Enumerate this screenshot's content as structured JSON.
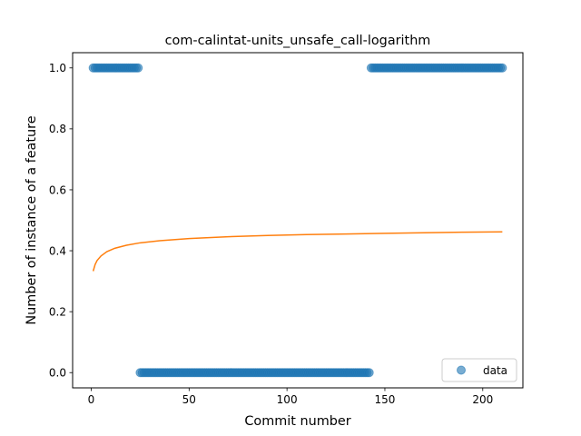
{
  "chart_data": {
    "type": "scatter",
    "title": "com-calintat-units_unsafe_call-logarithm",
    "xlabel": "Commit number",
    "ylabel": "Number of instance of a feature",
    "xlim": [
      -9.5,
      220.5
    ],
    "ylim": [
      -0.05,
      1.05
    ],
    "xticks": [
      0,
      50,
      100,
      150,
      200
    ],
    "xtick_labels": [
      "0",
      "50",
      "100",
      "150",
      "200"
    ],
    "yticks": [
      0.0,
      0.2,
      0.4,
      0.6,
      0.8,
      1.0
    ],
    "ytick_labels": [
      "0.0",
      "0.2",
      "0.4",
      "0.6",
      "0.8",
      "1.0"
    ],
    "legend": {
      "placement": "lower-right",
      "entries": [
        "data"
      ]
    },
    "series": [
      {
        "name": "data",
        "kind": "scatter",
        "color": "#1f77b4",
        "segments": [
          {
            "x_start": 1,
            "x_end": 24,
            "y": 1.0
          },
          {
            "x_start": 25,
            "x_end": 142,
            "y": 0.0
          },
          {
            "x_start": 143,
            "x_end": 210,
            "y": 1.0
          }
        ]
      },
      {
        "kind": "line",
        "color": "#ff7f0e",
        "x": [
          1,
          2,
          3,
          5,
          8,
          12,
          18,
          25,
          35,
          50,
          70,
          90,
          110,
          130,
          150,
          170,
          190,
          210
        ],
        "y": [
          0.333,
          0.355,
          0.368,
          0.383,
          0.397,
          0.408,
          0.418,
          0.426,
          0.433,
          0.44,
          0.446,
          0.45,
          0.453,
          0.455,
          0.457,
          0.459,
          0.461,
          0.462
        ]
      }
    ]
  }
}
